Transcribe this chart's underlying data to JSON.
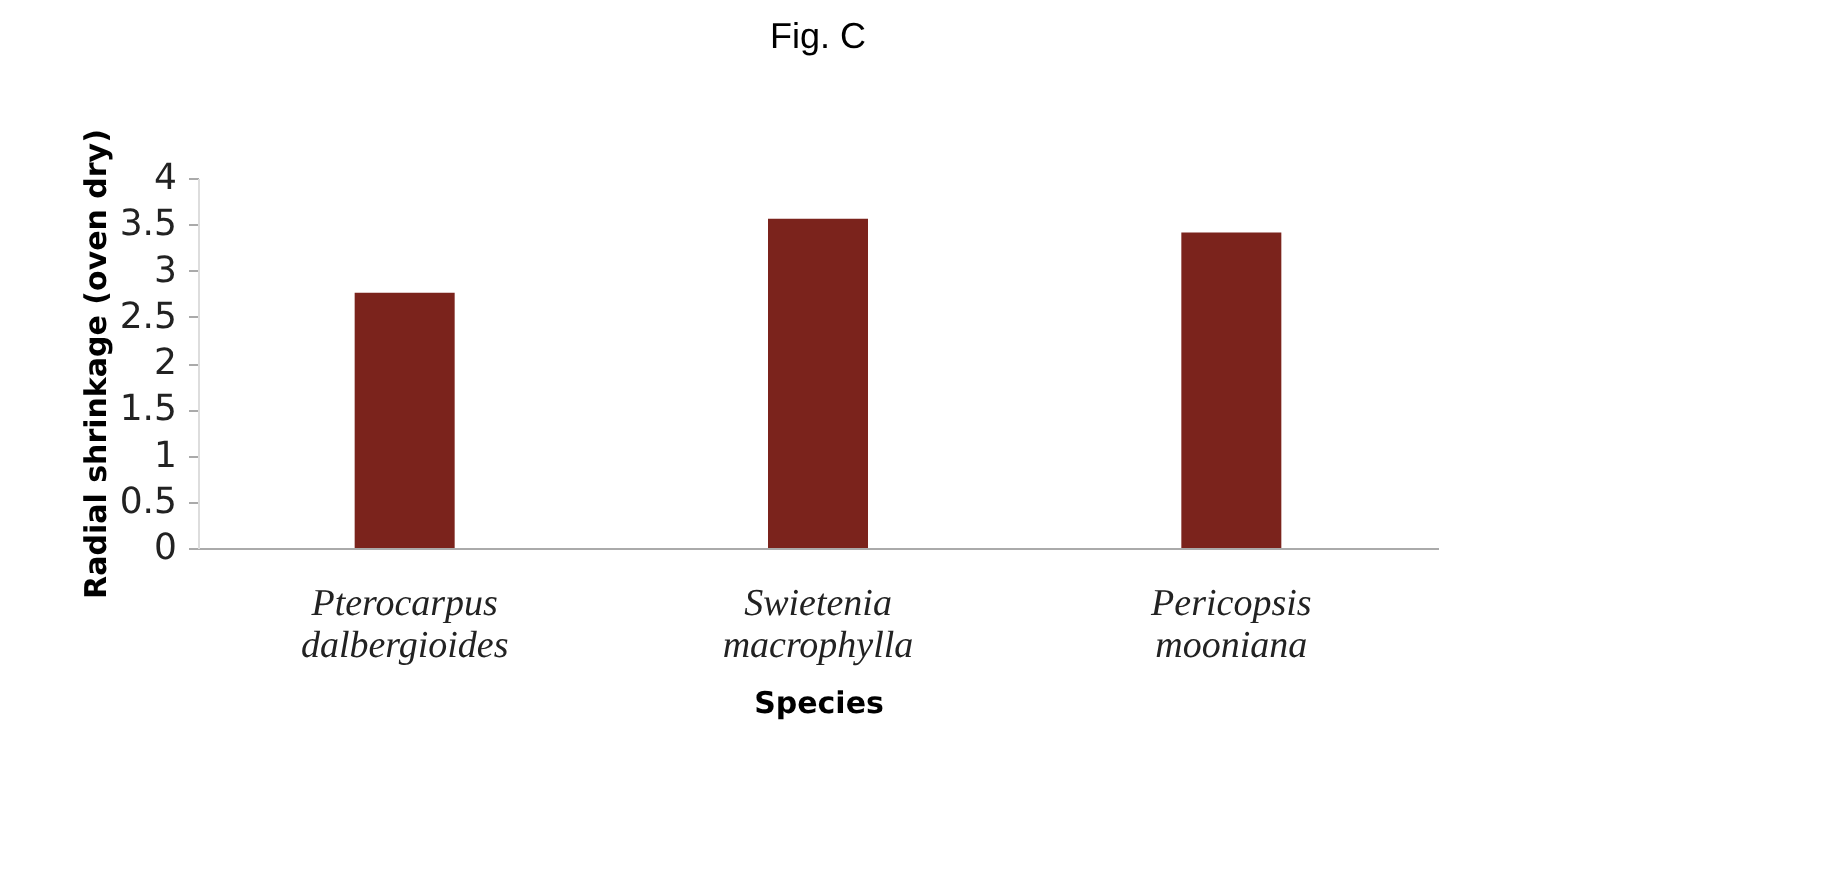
{
  "chart_data": {
    "type": "bar",
    "title": "Fig. C",
    "xlabel": "Species",
    "ylabel": "Radial shrinkage (oven dry)",
    "categories": [
      "Pterocarpus dalbergioides",
      "Swietenia macrophylla",
      "Pericopsis mooniana"
    ],
    "values": [
      2.76,
      3.56,
      3.41
    ],
    "color": "#7b231c",
    "ylim": [
      0,
      4
    ],
    "yticks": [
      0,
      0.5,
      1,
      1.5,
      2,
      2.5,
      3,
      3.5,
      4
    ],
    "grid": false,
    "legend": false
  }
}
